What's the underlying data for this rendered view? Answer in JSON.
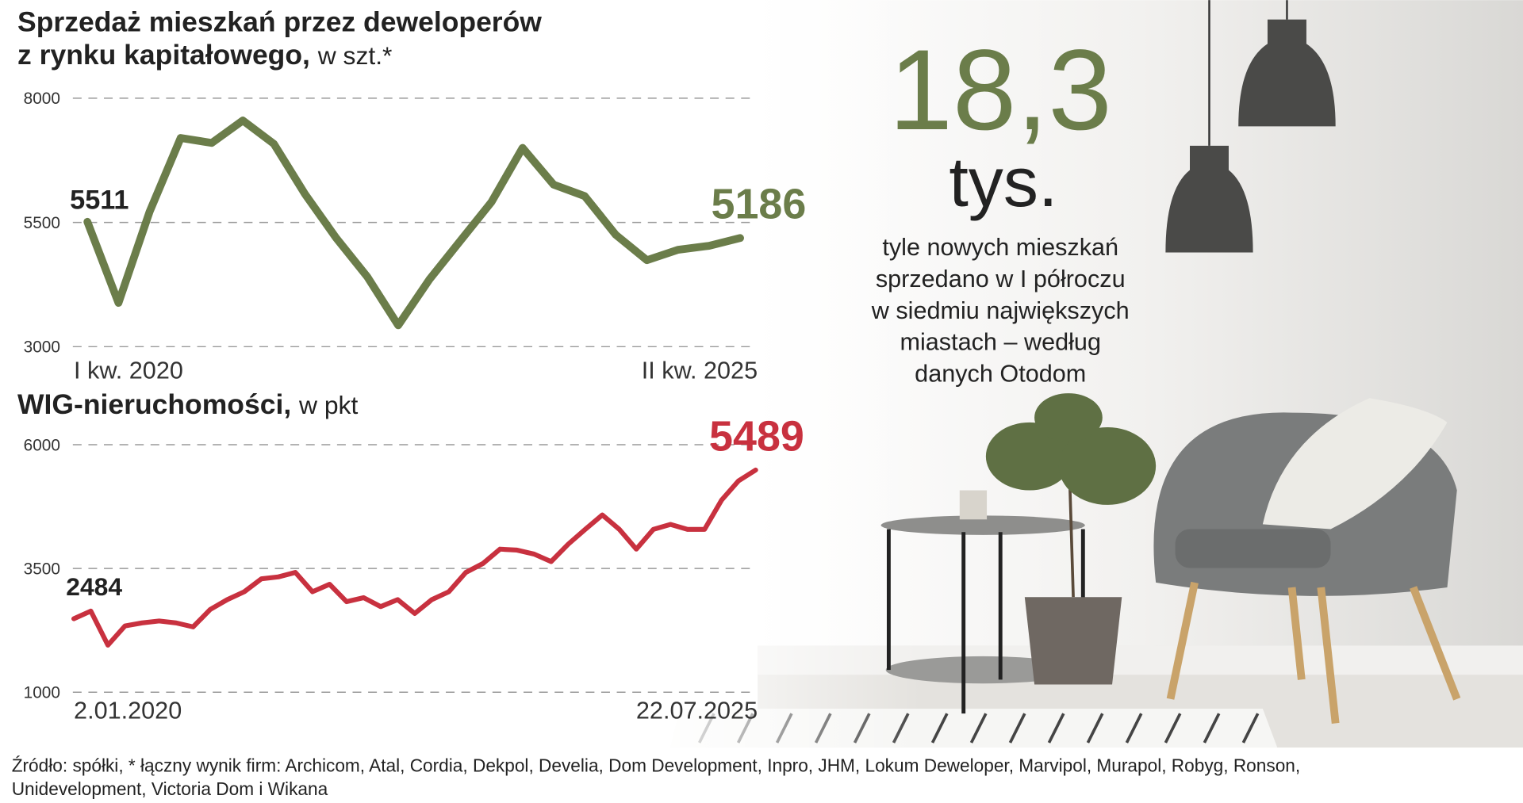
{
  "chart_data": [
    {
      "type": "line",
      "title": [
        "Sprzedaż mieszkań przez deweloperów",
        "z rynku kapitałowego,"
      ],
      "unit": "w szt.*",
      "categories": [
        "I kw. 2020",
        null,
        null,
        null,
        null,
        null,
        null,
        null,
        null,
        null,
        null,
        null,
        null,
        null,
        null,
        null,
        null,
        null,
        null,
        null,
        null,
        "II kw. 2025"
      ],
      "series": [
        {
          "name": null,
          "color": "#6b7d4a",
          "values": [
            5511,
            3880,
            5715,
            7200,
            7100,
            7550,
            7080,
            6070,
            5190,
            4410,
            3430,
            4350,
            5130,
            5910,
            7000,
            6260,
            6030,
            5250,
            4740,
            4950,
            5030,
            5186
          ]
        }
      ],
      "ylim": [
        3000,
        8000
      ],
      "yticks": [
        3000,
        5500,
        8000
      ],
      "grid": true
    },
    {
      "type": "line",
      "title": [
        "WIG-nieruchomości,"
      ],
      "unit": "w pkt",
      "categories": [
        "2.01.2020",
        null,
        null,
        null,
        null,
        null,
        null,
        null,
        null,
        null,
        null,
        null,
        null,
        null,
        null,
        null,
        null,
        null,
        null,
        null,
        null,
        null,
        null,
        null,
        null,
        null,
        null,
        null,
        null,
        null,
        null,
        null,
        null,
        null,
        null,
        null,
        null,
        null,
        null,
        null,
        "22.07.2025"
      ],
      "series": [
        {
          "name": null,
          "color": "#c8313f",
          "values": [
            2484,
            2640,
            1950,
            2340,
            2400,
            2440,
            2400,
            2320,
            2670,
            2870,
            3030,
            3290,
            3330,
            3420,
            3030,
            3180,
            2830,
            2910,
            2730,
            2870,
            2590,
            2870,
            3030,
            3420,
            3600,
            3890,
            3870,
            3790,
            3640,
            3990,
            4290,
            4580,
            4290,
            3890,
            4290,
            4390,
            4290,
            4290,
            4880,
            5270,
            5489
          ]
        }
      ],
      "ylim": [
        1000,
        6000
      ],
      "yticks": [
        1000,
        3500,
        6000
      ],
      "grid": true
    }
  ],
  "headline": {
    "number": "18,3",
    "unit": "tys.",
    "text": [
      "tyle nowych mieszkań",
      "sprzedano w I półroczu",
      "w siedmiu największych",
      "miastach – według",
      "danych Otodom"
    ]
  },
  "source": [
    "Źródło: spółki, * łączny wynik firm: Archicom, Atal, Cordia, Dekpol, Develia, Dom Development, Inpro, JHM, Lokum Deweloper, Marvipol, Murapol, Robyg, Ronson,",
    "Unidevelopment, Victoria Dom i Wikana"
  ]
}
